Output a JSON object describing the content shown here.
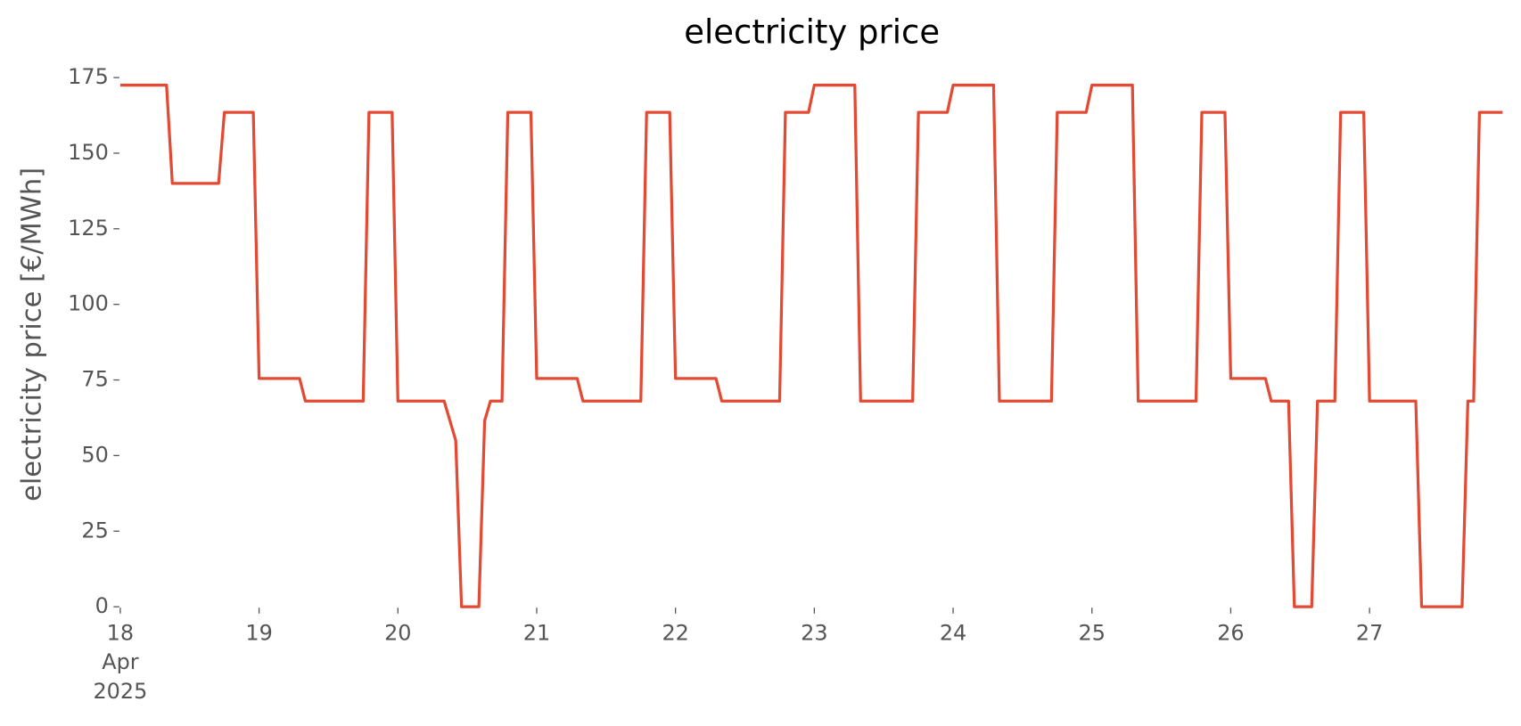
{
  "chart_data": {
    "type": "line",
    "title": "electricity price",
    "y_label": "electricity price [€/MWh]",
    "x": [
      "2025-04-18T00:00",
      "2025-04-18T08:00",
      "2025-04-18T09:00",
      "2025-04-18T17:00",
      "2025-04-18T18:00",
      "2025-04-18T23:00",
      "2025-04-19T00:00",
      "2025-04-19T07:00",
      "2025-04-19T08:00",
      "2025-04-19T18:00",
      "2025-04-19T19:00",
      "2025-04-19T23:00",
      "2025-04-20T00:00",
      "2025-04-20T08:00",
      "2025-04-20T10:00",
      "2025-04-20T11:00",
      "2025-04-20T14:00",
      "2025-04-20T15:00",
      "2025-04-20T16:00",
      "2025-04-20T18:00",
      "2025-04-20T19:00",
      "2025-04-20T23:00",
      "2025-04-21T00:00",
      "2025-04-21T07:00",
      "2025-04-21T08:00",
      "2025-04-21T18:00",
      "2025-04-21T19:00",
      "2025-04-21T23:00",
      "2025-04-22T00:00",
      "2025-04-22T07:00",
      "2025-04-22T08:00",
      "2025-04-22T18:00",
      "2025-04-22T19:00",
      "2025-04-22T23:00",
      "2025-04-23T00:00",
      "2025-04-23T07:00",
      "2025-04-23T08:00",
      "2025-04-23T17:00",
      "2025-04-23T18:00",
      "2025-04-23T23:00",
      "2025-04-24T00:00",
      "2025-04-24T07:00",
      "2025-04-24T08:00",
      "2025-04-24T17:00",
      "2025-04-24T18:00",
      "2025-04-24T23:00",
      "2025-04-25T00:00",
      "2025-04-25T07:00",
      "2025-04-25T08:00",
      "2025-04-25T18:00",
      "2025-04-25T19:00",
      "2025-04-25T23:00",
      "2025-04-26T00:00",
      "2025-04-26T06:00",
      "2025-04-26T07:00",
      "2025-04-26T10:00",
      "2025-04-26T11:00",
      "2025-04-26T14:00",
      "2025-04-26T15:00",
      "2025-04-26T18:00",
      "2025-04-26T19:00",
      "2025-04-26T23:00",
      "2025-04-27T00:00",
      "2025-04-27T08:00",
      "2025-04-27T09:00",
      "2025-04-27T16:00",
      "2025-04-27T17:00",
      "2025-04-27T18:00",
      "2025-04-27T19:00",
      "2025-04-27T23:00"
    ],
    "series": [
      {
        "name": "electricity price",
        "color": "#e24a33",
        "values": [
          172.5,
          172.5,
          140,
          140,
          163.5,
          163.5,
          75.5,
          75.5,
          68,
          68,
          163.5,
          163.5,
          68,
          68,
          55,
          0,
          0,
          61.5,
          68,
          68,
          163.5,
          163.5,
          75.5,
          75.5,
          68,
          68,
          163.5,
          163.5,
          75.5,
          75.5,
          68,
          68,
          163.5,
          163.5,
          172.5,
          172.5,
          68,
          68,
          163.5,
          163.5,
          172.5,
          172.5,
          68,
          68,
          163.5,
          163.5,
          172.5,
          172.5,
          68,
          68,
          163.5,
          163.5,
          75.5,
          75.5,
          68,
          68,
          0,
          0,
          68,
          68,
          163.5,
          163.5,
          68,
          68,
          0,
          0,
          68,
          68,
          163.5,
          163.5
        ]
      }
    ],
    "xlim": [
      "2025-04-18T00:00",
      "2025-04-27T23:00"
    ],
    "xticks": [
      {
        "value": "2025-04-18T00:00",
        "label": "18"
      },
      {
        "value": "2025-04-19T00:00",
        "label": "19"
      },
      {
        "value": "2025-04-20T00:00",
        "label": "20"
      },
      {
        "value": "2025-04-21T00:00",
        "label": "21"
      },
      {
        "value": "2025-04-22T00:00",
        "label": "22"
      },
      {
        "value": "2025-04-23T00:00",
        "label": "23"
      },
      {
        "value": "2025-04-24T00:00",
        "label": "24"
      },
      {
        "value": "2025-04-25T00:00",
        "label": "25"
      },
      {
        "value": "2025-04-26T00:00",
        "label": "26"
      },
      {
        "value": "2025-04-27T00:00",
        "label": "27"
      }
    ],
    "x_first_tick_sublabels": [
      "Apr",
      "2025"
    ],
    "ylim": [
      0,
      175
    ],
    "yticks": [
      0,
      25,
      50,
      75,
      100,
      125,
      150,
      175
    ],
    "grid": false
  }
}
